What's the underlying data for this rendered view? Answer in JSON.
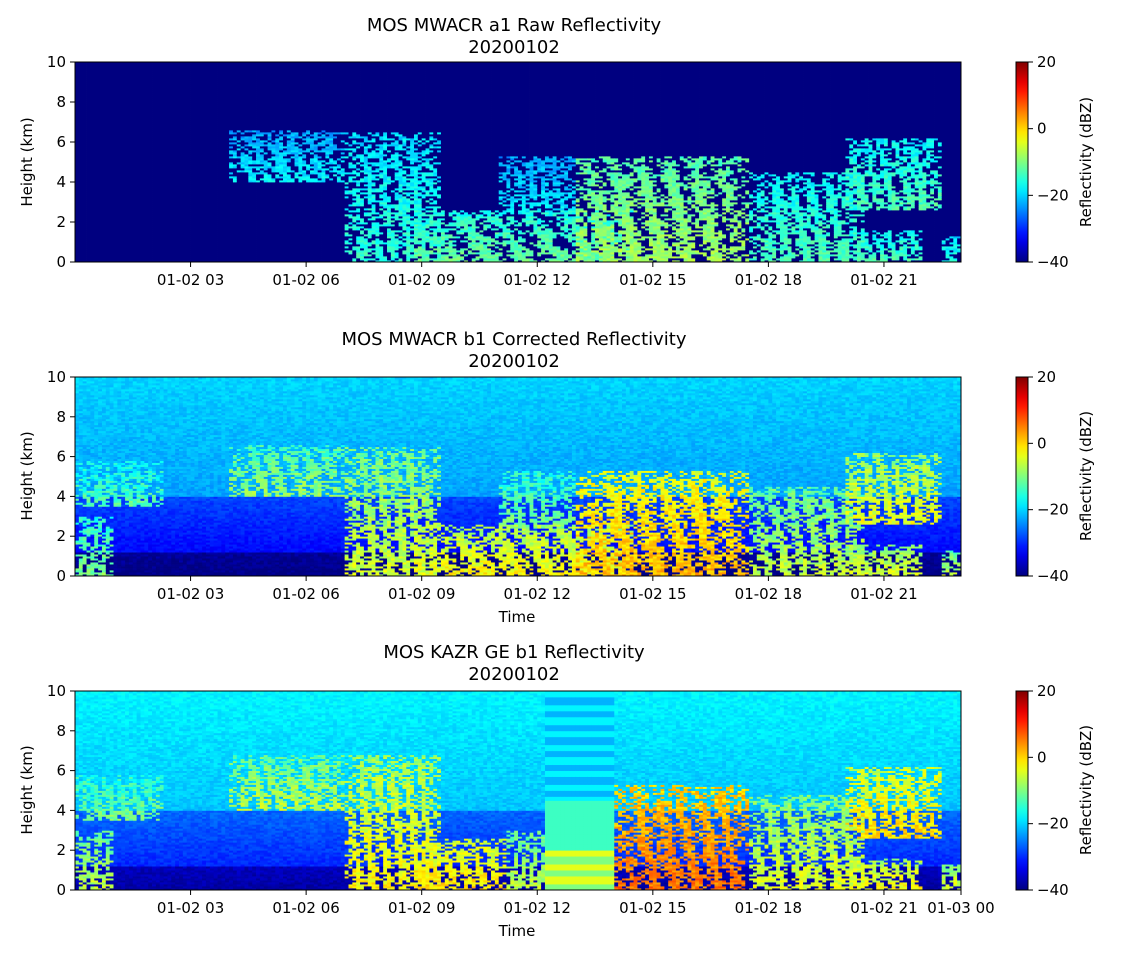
{
  "colors": {
    "colormap": "jet",
    "axis": "#000000",
    "background": "#ffffff"
  },
  "chart_data": [
    {
      "type": "heatmap",
      "title": "MOS MWACR a1 Raw Reflectivity",
      "subtitle": "20200102",
      "xlabel": "",
      "ylabel": "Height (km)",
      "colorbar_label": "Reflectivity (dBZ)",
      "xlim": [
        0,
        23
      ],
      "ylim": [
        0,
        10
      ],
      "clim": [
        -40,
        20
      ],
      "x_ticks": [
        {
          "x": 3,
          "label": "01-02 03"
        },
        {
          "x": 6,
          "label": "01-02 06"
        },
        {
          "x": 9,
          "label": "01-02 09"
        },
        {
          "x": 12,
          "label": "01-02 12"
        },
        {
          "x": 15,
          "label": "01-02 15"
        },
        {
          "x": 18,
          "label": "01-02 18"
        },
        {
          "x": 21,
          "label": "01-02 21"
        }
      ],
      "y_ticks": [
        "0",
        "2",
        "4",
        "6",
        "8",
        "10"
      ],
      "cbar_ticks": [
        "-40",
        "-20",
        "0",
        "20"
      ],
      "background_dbz": -40,
      "signal_scale": 0.45,
      "cloud_regions": [
        {
          "t0": 4.0,
          "t1": 7.0,
          "zbot": 4.0,
          "ztop": 6.6,
          "dbz": -14
        },
        {
          "t0": 7.0,
          "t1": 9.5,
          "zbot": 0.0,
          "ztop": 6.5,
          "dbz": -10
        },
        {
          "t0": 8.8,
          "t1": 14.5,
          "zbot": 0.0,
          "ztop": 2.6,
          "dbz": -6
        },
        {
          "t0": 11.0,
          "t1": 13.0,
          "zbot": 2.4,
          "ztop": 5.3,
          "dbz": -14
        },
        {
          "t0": 13.0,
          "t1": 17.5,
          "zbot": 0.0,
          "ztop": 5.3,
          "dbz": -2
        },
        {
          "t0": 17.5,
          "t1": 20.5,
          "zbot": 0.0,
          "ztop": 4.5,
          "dbz": -8
        },
        {
          "t0": 20.0,
          "t1": 22.0,
          "zbot": 0.0,
          "ztop": 1.6,
          "dbz": -8
        },
        {
          "t0": 20.0,
          "t1": 22.5,
          "zbot": 2.6,
          "ztop": 6.2,
          "dbz": -8
        },
        {
          "t0": 22.5,
          "t1": 23.0,
          "zbot": 0.0,
          "ztop": 1.3,
          "dbz": -10
        }
      ]
    },
    {
      "type": "heatmap",
      "title": "MOS MWACR b1 Corrected Reflectivity",
      "subtitle": "20200102",
      "xlabel": "Time",
      "ylabel": "Height (km)",
      "colorbar_label": "Reflectivity (dBZ)",
      "xlim": [
        0,
        23
      ],
      "ylim": [
        0,
        10
      ],
      "clim": [
        -40,
        20
      ],
      "x_ticks": [
        {
          "x": 3,
          "label": "01-02 03"
        },
        {
          "x": 6,
          "label": "01-02 06"
        },
        {
          "x": 9,
          "label": "01-02 09"
        },
        {
          "x": 12,
          "label": "01-02 12"
        },
        {
          "x": 15,
          "label": "01-02 15"
        },
        {
          "x": 18,
          "label": "01-02 18"
        },
        {
          "x": 21,
          "label": "01-02 21"
        }
      ],
      "y_ticks": [
        "0",
        "2",
        "4",
        "6",
        "8",
        "10"
      ],
      "cbar_ticks": [
        "-40",
        "-20",
        "0",
        "20"
      ],
      "background_dbz": -20,
      "signal_scale": 1.0,
      "cloud_regions": [
        {
          "t0": 0.0,
          "t1": 2.3,
          "zbot": 3.5,
          "ztop": 5.8,
          "dbz": -12
        },
        {
          "t0": 0.0,
          "t1": 1.0,
          "zbot": 0.0,
          "ztop": 3.0,
          "dbz": -10
        },
        {
          "t0": 4.0,
          "t1": 7.0,
          "zbot": 4.0,
          "ztop": 6.6,
          "dbz": -8
        },
        {
          "t0": 7.0,
          "t1": 9.5,
          "zbot": 0.0,
          "ztop": 6.5,
          "dbz": -5
        },
        {
          "t0": 8.8,
          "t1": 14.5,
          "zbot": 0.0,
          "ztop": 2.6,
          "dbz": -2
        },
        {
          "t0": 11.0,
          "t1": 13.0,
          "zbot": 2.4,
          "ztop": 5.3,
          "dbz": -10
        },
        {
          "t0": 13.0,
          "t1": 17.5,
          "zbot": 0.0,
          "ztop": 5.3,
          "dbz": 2
        },
        {
          "t0": 17.5,
          "t1": 20.5,
          "zbot": 0.0,
          "ztop": 4.5,
          "dbz": -6
        },
        {
          "t0": 20.0,
          "t1": 22.0,
          "zbot": 0.0,
          "ztop": 1.6,
          "dbz": -4
        },
        {
          "t0": 20.0,
          "t1": 22.5,
          "zbot": 2.6,
          "ztop": 6.2,
          "dbz": -3
        },
        {
          "t0": 22.5,
          "t1": 23.0,
          "zbot": 0.0,
          "ztop": 1.3,
          "dbz": -6
        }
      ]
    },
    {
      "type": "heatmap",
      "title": "MOS KAZR GE b1 Reflectivity",
      "subtitle": "20200102",
      "xlabel": "Time",
      "ylabel": "Height (km)",
      "colorbar_label": "Reflectivity (dBZ)",
      "xlim": [
        0,
        23
      ],
      "ylim": [
        0,
        10
      ],
      "clim": [
        -40,
        20
      ],
      "x_ticks": [
        {
          "x": 3,
          "label": "01-02 03"
        },
        {
          "x": 6,
          "label": "01-02 06"
        },
        {
          "x": 9,
          "label": "01-02 09"
        },
        {
          "x": 12,
          "label": "01-02 12"
        },
        {
          "x": 15,
          "label": "01-02 15"
        },
        {
          "x": 18,
          "label": "01-02 18"
        },
        {
          "x": 21,
          "label": "01-02 21"
        },
        {
          "x": 23,
          "label": "01-03 00"
        }
      ],
      "y_ticks": [
        "0",
        "2",
        "4",
        "6",
        "8",
        "10"
      ],
      "cbar_ticks": [
        "-40",
        "-20",
        "0",
        "20"
      ],
      "background_dbz": -18,
      "signal_scale": 1.15,
      "cloud_regions": [
        {
          "t0": 0.0,
          "t1": 2.3,
          "zbot": 3.5,
          "ztop": 5.8,
          "dbz": -10
        },
        {
          "t0": 0.0,
          "t1": 1.0,
          "zbot": 0.0,
          "ztop": 3.0,
          "dbz": -6
        },
        {
          "t0": 4.0,
          "t1": 7.0,
          "zbot": 4.0,
          "ztop": 6.8,
          "dbz": -6
        },
        {
          "t0": 7.0,
          "t1": 9.5,
          "zbot": 0.0,
          "ztop": 6.8,
          "dbz": -2
        },
        {
          "t0": 8.8,
          "t1": 11.2,
          "zbot": 0.0,
          "ztop": 2.6,
          "dbz": 0
        },
        {
          "t0": 11.2,
          "t1": 12.3,
          "zbot": 0.0,
          "ztop": 3.0,
          "dbz": -6
        },
        {
          "t0": 14.0,
          "t1": 17.5,
          "zbot": 0.0,
          "ztop": 5.3,
          "dbz": 6
        },
        {
          "t0": 17.5,
          "t1": 20.5,
          "zbot": 0.0,
          "ztop": 4.8,
          "dbz": -4
        },
        {
          "t0": 20.0,
          "t1": 22.0,
          "zbot": 0.0,
          "ztop": 1.6,
          "dbz": -2
        },
        {
          "t0": 20.0,
          "t1": 22.5,
          "zbot": 2.6,
          "ztop": 6.2,
          "dbz": 0
        },
        {
          "t0": 22.5,
          "t1": 23.0,
          "zbot": 0.0,
          "ztop": 1.3,
          "dbz": -4
        }
      ],
      "data_gap": {
        "t0": 12.25,
        "t1": 14.0,
        "zbot": 0.0,
        "ztop": 10.0
      }
    }
  ]
}
